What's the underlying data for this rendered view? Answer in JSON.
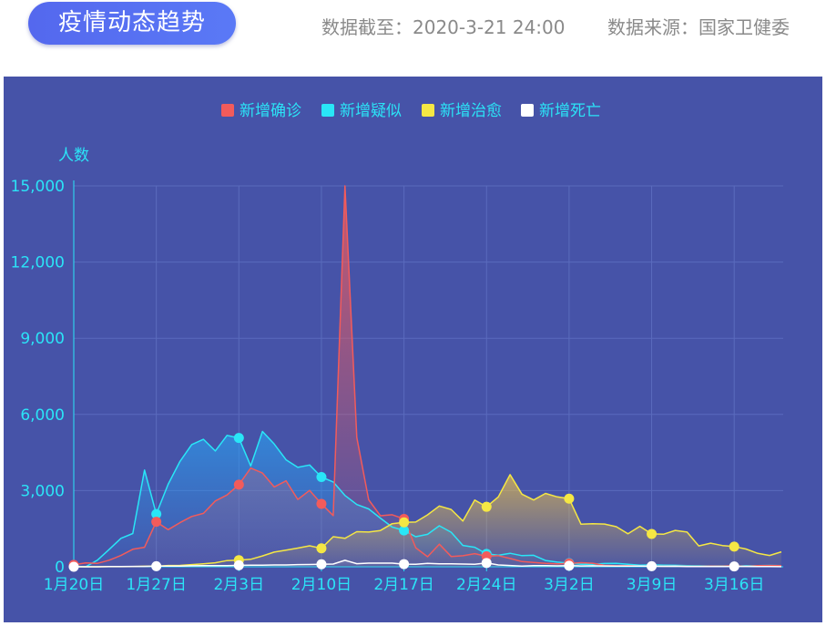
{
  "header": {
    "title": "疫情动态趋势",
    "date_text": "数据截至：2020-3-21 24:00",
    "source_text": "数据来源：国家卫健委"
  },
  "chart_data": {
    "type": "area",
    "ylabel": "人数",
    "ylim": [
      0,
      15000
    ],
    "yticks": [
      0,
      3000,
      6000,
      9000,
      12000,
      15000
    ],
    "ytick_labels": [
      "0",
      "3,000",
      "6,000",
      "9,000",
      "12,000",
      "15,000"
    ],
    "x_start": "2020-01-20",
    "xtick_labels": [
      "1月20日",
      "1月27日",
      "2月3日",
      "2月10日",
      "2月17日",
      "2月24日",
      "3月2日",
      "3月9日",
      "3月16日"
    ],
    "grid": true,
    "legend_position": "top-center",
    "series": [
      {
        "name": "新增确诊",
        "color": "#f25b5b",
        "values": [
          77,
          149,
          131,
          259,
          444,
          688,
          769,
          1771,
          1459,
          1737,
          1982,
          2102,
          2590,
          2829,
          3235,
          3887,
          3694,
          3143,
          3385,
          2652,
          3007,
          2478,
          2015,
          15152,
          5090,
          2641,
          2008,
          2048,
          1886,
          749,
          394,
          889,
          406,
          433,
          515,
          411,
          437,
          327,
          206,
          174,
          138,
          119,
          128,
          163,
          139,
          56,
          40,
          44,
          30,
          24,
          19,
          21,
          17,
          19,
          24,
          27,
          45,
          15,
          46,
          50,
          45
        ],
        "markers": [
          0,
          7,
          14,
          21,
          28,
          35,
          42
        ]
      },
      {
        "name": "新增疑似",
        "color": "#29e6f7",
        "values": [
          27,
          0,
          257,
          680,
          1118,
          1309,
          3806,
          2077,
          3248,
          4148,
          4812,
          5019,
          4562,
          5173,
          5072,
          3971,
          5328,
          4833,
          4214,
          3916,
          4008,
          3536,
          3342,
          2807,
          2450,
          2277,
          1918,
          1563,
          1432,
          1185,
          1277,
          1614,
          1361,
          840,
          769,
          508,
          452,
          530,
          439,
          451,
          248,
          184,
          143,
          102,
          99,
          129,
          135,
          102,
          65,
          74,
          63,
          59,
          47,
          41,
          33,
          39,
          32,
          39,
          46,
          54,
          47
        ],
        "markers": [
          0,
          7,
          14,
          21,
          28,
          35,
          42
        ]
      },
      {
        "name": "新增治愈",
        "color": "#f5e744",
        "values": [
          0,
          0,
          0,
          3,
          5,
          9,
          21,
          20,
          50,
          53,
          87,
          117,
          158,
          244,
          262,
          294,
          428,
          579,
          656,
          736,
          824,
          725,
          1186,
          1120,
          1382,
          1366,
          1427,
          1696,
          1751,
          1762,
          2045,
          2392,
          2256,
          1802,
          2626,
          2362,
          2752,
          3627,
          2860,
          2632,
          2887,
          2754,
          2683,
          1681,
          1695,
          1683,
          1579,
          1298,
          1595,
          1294,
          1280,
          1433,
          1369,
          822,
          930,
          837,
          795,
          698,
          528,
          445,
          589
        ],
        "markers": [
          14,
          21,
          28,
          35,
          42,
          49,
          56
        ]
      },
      {
        "name": "新增死亡",
        "color": "#ffffff",
        "values": [
          0,
          0,
          0,
          8,
          9,
          16,
          15,
          24,
          26,
          26,
          38,
          43,
          46,
          45,
          57,
          64,
          65,
          73,
          73,
          86,
          89,
          97,
          108,
          254,
          121,
          143,
          143,
          142,
          105,
          98,
          136,
          114,
          118,
          109,
          97,
          150,
          71,
          52,
          29,
          44,
          47,
          35,
          42,
          31,
          38,
          31,
          30,
          28,
          27,
          22,
          17,
          22,
          11,
          7,
          13,
          10,
          14,
          13,
          11,
          8,
          3
        ],
        "markers": [
          0,
          7,
          14,
          21,
          28,
          35,
          42,
          49,
          56
        ]
      }
    ]
  }
}
